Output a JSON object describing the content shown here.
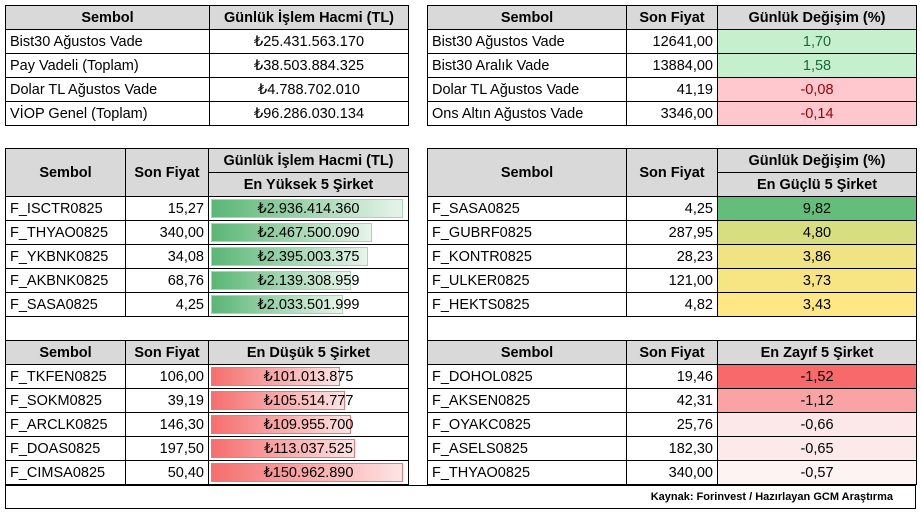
{
  "volume_table": {
    "headers": [
      "Sembol",
      "Günlük İşlem Hacmi (TL)"
    ],
    "rows": [
      [
        "Bist30 Ağustos Vade",
        "₺25.431.563.170"
      ],
      [
        "Pay Vadeli (Toplam)",
        "₺38.503.884.325"
      ],
      [
        "Dolar TL Ağustos Vade",
        "₺4.788.702.010"
      ],
      [
        "VİOP Genel (Toplam)",
        "₺96.286.030.134"
      ]
    ]
  },
  "price_table": {
    "headers": [
      "Sembol",
      "Son Fiyat",
      "Günlük Değişim (%)"
    ],
    "rows": [
      [
        "Bist30 Ağustos Vade",
        "12641,00",
        "1,70"
      ],
      [
        "Bist30 Aralık Vade",
        "13884,00",
        "1,58"
      ],
      [
        "Dolar TL Ağustos Vade",
        "41,19",
        "-0,08"
      ],
      [
        "Ons Altın Ağustos Vade",
        "3346,00",
        "-0,14"
      ]
    ]
  },
  "top_volume": {
    "headers": [
      "Sembol",
      "Son Fiyat",
      "Günlük İşlem Hacmi (TL)"
    ],
    "subheader": "En Yüksek 5 Şirket",
    "rows": [
      {
        "sym": "F_ISCTR0825",
        "price": "15,27",
        "vol": "₺2.936.414.360",
        "level": 1.0
      },
      {
        "sym": "F_THYAO0825",
        "price": "340,00",
        "vol": "₺2.467.500.090",
        "level": 0.84
      },
      {
        "sym": "F_YKBNK0825",
        "price": "34,08",
        "vol": "₺2.395.003.375",
        "level": 0.82
      },
      {
        "sym": "F_AKBNK0825",
        "price": "68,76",
        "vol": "₺2.139.308.959",
        "level": 0.73
      },
      {
        "sym": "F_SASA0825",
        "price": "4,25",
        "vol": "₺2.033.501.999",
        "level": 0.69
      }
    ]
  },
  "top_gainers": {
    "headers": [
      "Sembol",
      "Son Fiyat",
      "Günlük Değişim (%)"
    ],
    "subheader": "En Güçlü 5 Şirket",
    "rows": [
      {
        "sym": "F_SASA0825",
        "price": "4,25",
        "chg": "9,82",
        "color": "#63be7b"
      },
      {
        "sym": "F_GUBRF0825",
        "price": "287,95",
        "chg": "4,80",
        "color": "#d7de7f"
      },
      {
        "sym": "F_KONTR0825",
        "price": "28,23",
        "chg": "3,86",
        "color": "#f0e384"
      },
      {
        "sym": "F_ULKER0825",
        "price": "121,00",
        "chg": "3,73",
        "color": "#f7e584"
      },
      {
        "sym": "F_HEKTS0825",
        "price": "4,82",
        "chg": "3,43",
        "color": "#ffe884"
      }
    ]
  },
  "bottom_volume": {
    "headers": [
      "Sembol",
      "Son Fiyat",
      "En Düşük 5 Şirket"
    ],
    "rows": [
      {
        "sym": "F_TKFEN0825",
        "price": "106,00",
        "vol": "₺101.013.875",
        "level": 0.67
      },
      {
        "sym": "F_SOKM0825",
        "price": "39,19",
        "vol": "₺105.514.777",
        "level": 0.7
      },
      {
        "sym": "F_ARCLK0825",
        "price": "146,30",
        "vol": "₺109.955.700",
        "level": 0.73
      },
      {
        "sym": "F_DOAS0825",
        "price": "197,50",
        "vol": "₺113.037.525",
        "level": 0.75
      },
      {
        "sym": "F_CIMSA0825",
        "price": "50,40",
        "vol": "₺150.962.890",
        "level": 1.0
      }
    ]
  },
  "bottom_losers": {
    "headers": [
      "Sembol",
      "Son Fiyat",
      "En Zayıf 5 Şirket"
    ],
    "rows": [
      {
        "sym": "F_DOHOL0825",
        "price": "19,46",
        "chg": "-1,52",
        "color": "#f8696b"
      },
      {
        "sym": "F_AKSEN0825",
        "price": "42,31",
        "chg": "-1,12",
        "color": "#f9a3a5"
      },
      {
        "sym": "F_OYAKC0825",
        "price": "25,76",
        "chg": "-0,66",
        "color": "#fce8e9"
      },
      {
        "sym": "F_ASELS0825",
        "price": "182,30",
        "chg": "-0,65",
        "color": "#fceaeb"
      },
      {
        "sym": "F_THYAO0825",
        "price": "340,00",
        "chg": "-0,57",
        "color": "#fdf3f3"
      }
    ]
  },
  "footer": "Kaynak: Forinvest / Hazırlayan GCM Araştırma"
}
